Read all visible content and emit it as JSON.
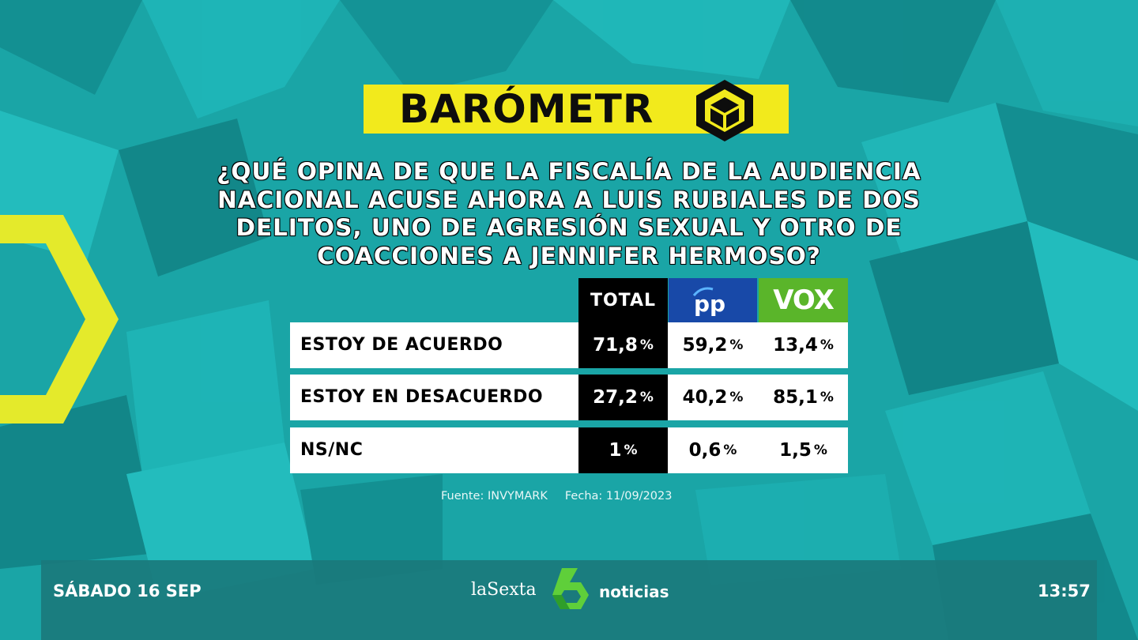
{
  "badge": {
    "title": "BARÓMETR"
  },
  "question": "¿Qué opina de que la Fiscalía de la Audiencia Nacional acuse ahora a Luis Rubiales de dos delitos, uno de agresión sexual y otro de coacciones a Jennifer Hermoso?",
  "table": {
    "headers": {
      "total": "TOTAL",
      "pp": "pp",
      "vox": "VOX"
    },
    "rows": [
      {
        "label": "ESTOY DE ACUERDO",
        "total": "71,8",
        "pp": "59,2",
        "vox": "13,4"
      },
      {
        "label": "ESTOY EN DESACUERDO",
        "total": "27,2",
        "pp": "40,2",
        "vox": "85,1"
      },
      {
        "label": "NS/NC",
        "total": "1",
        "pp": "0,6",
        "vox": "1,5"
      }
    ],
    "unit": "%"
  },
  "source": {
    "fuente": "Fuente: INVYMARK",
    "fecha": "Fecha: 11/09/2023"
  },
  "footer": {
    "date": "SÁBADO 16 SEP",
    "brand": "laSexta",
    "program": "noticias",
    "time": "13:57"
  },
  "colors": {
    "badge": "#f2ea1c",
    "pp": "#1849a8",
    "vox": "#5ab52a",
    "background": "#1aa7a8"
  },
  "icons": {
    "badge_logo": "hexagon-cube-icon",
    "brand_logo": "lasexta-6-logo"
  }
}
